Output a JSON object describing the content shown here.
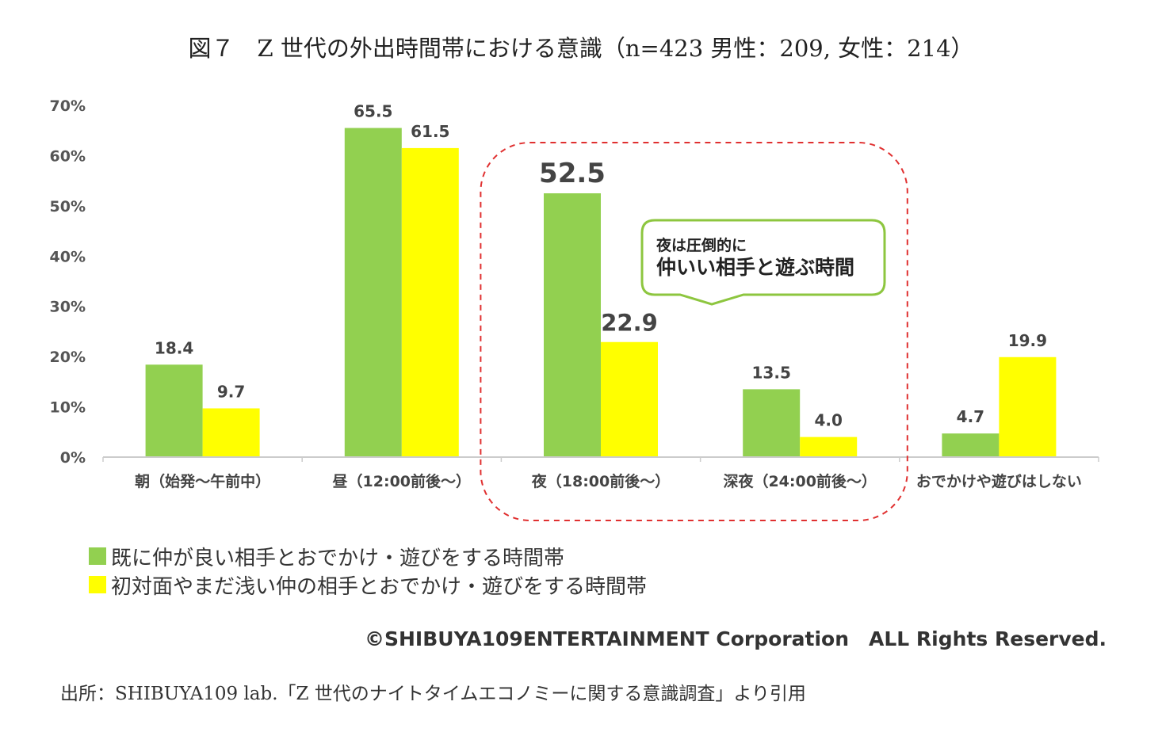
{
  "title": "図７　Z 世代の外出時間帯における意識（n=423  男性：209,  女性：214）",
  "chart_data": {
    "type": "bar",
    "categories": [
      "朝（始発～午前中）",
      "昼（12:00前後～）",
      "夜（18:00前後～）",
      "深夜（24:00前後～）",
      "おでかけや遊びはしない"
    ],
    "series": [
      {
        "name": "既に仲が良い相手とおでかけ・遊びをする時間帯",
        "color": "#92D050",
        "values": [
          18.4,
          65.5,
          52.5,
          13.5,
          4.7
        ]
      },
      {
        "name": "初対面やまだ浅い仲の相手とおでかけ・遊びをする時間帯",
        "color": "#FFFF00",
        "values": [
          9.7,
          61.5,
          22.9,
          4.0,
          19.9
        ]
      }
    ],
    "yticks": [
      "0%",
      "10%",
      "20%",
      "30%",
      "40%",
      "50%",
      "60%",
      "70%"
    ],
    "ylim": [
      0,
      70
    ],
    "grid": false,
    "legend_position": "bottom-left",
    "highlight": {
      "categories": [
        "夜（18:00前後～）",
        "深夜（24:00前後～）"
      ],
      "border_color": "#E03030"
    },
    "callout": {
      "line1": "夜は圧倒的に",
      "line2": "仲いい相手と遊ぶ時間",
      "border_color": "#8DC63F"
    }
  },
  "copyright": "©SHIBUYA109ENTERTAINMENT Corporation　ALL Rights Reserved.",
  "source": "出所：SHIBUYA109 lab.「Z 世代のナイトタイムエコノミーに関する意識調査」より引用"
}
